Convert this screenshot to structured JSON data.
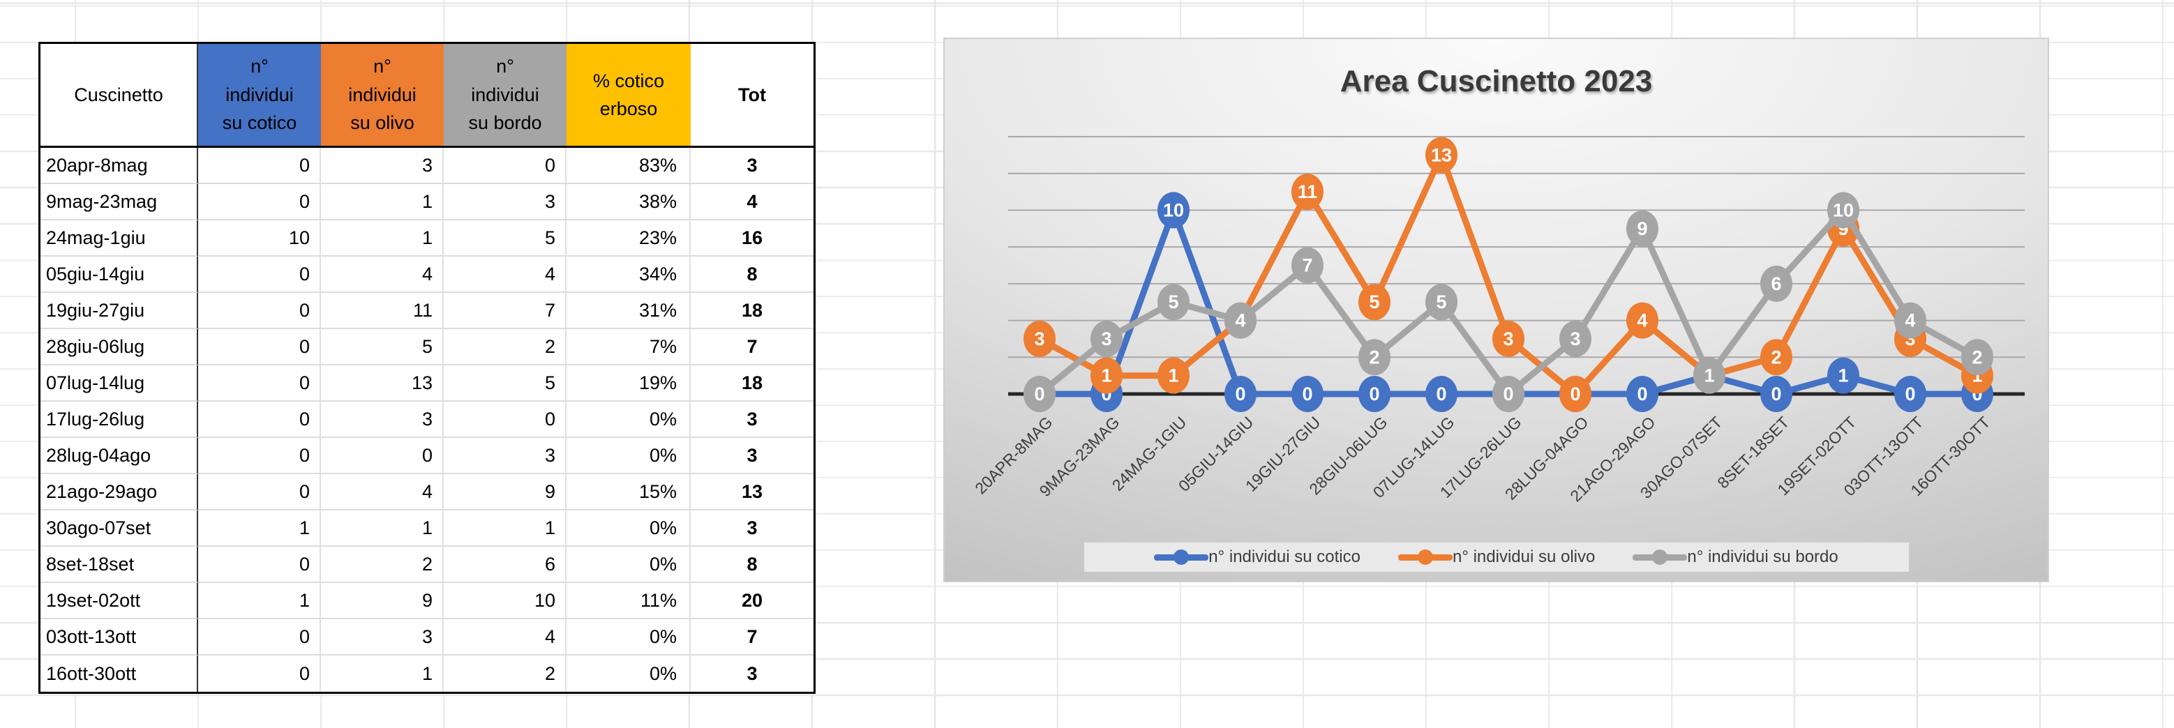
{
  "table": {
    "columns": [
      {
        "key": "period",
        "label": "Cuscinetto",
        "lines": [
          "Cuscinetto"
        ],
        "bg": "#FFFFFF",
        "bold": false
      },
      {
        "key": "cotico",
        "label": "n° individui su cotico",
        "lines": [
          "n°",
          "individui",
          "su cotico"
        ],
        "bg": "#4472C4",
        "bold": false
      },
      {
        "key": "olivo",
        "label": "n° individui su olivo",
        "lines": [
          "n°",
          "individui",
          "su olivo"
        ],
        "bg": "#ED7D31",
        "bold": false
      },
      {
        "key": "bordo",
        "label": "n° individui su bordo",
        "lines": [
          "n°",
          "individui",
          "su bordo"
        ],
        "bg": "#A5A5A5",
        "bold": false
      },
      {
        "key": "perc",
        "label": "% cotico erboso",
        "lines": [
          "% cotico",
          "erboso"
        ],
        "bg": "#FFC000",
        "bold": false
      },
      {
        "key": "tot",
        "label": "Tot",
        "lines": [
          "Tot"
        ],
        "bg": "#FFFFFF",
        "bold": true
      }
    ],
    "rows": [
      {
        "period": "20apr-8mag",
        "cotico": "0",
        "olivo": "3",
        "bordo": "0",
        "perc": "83%",
        "tot": "3"
      },
      {
        "period": "9mag-23mag",
        "cotico": "0",
        "olivo": "1",
        "bordo": "3",
        "perc": "38%",
        "tot": "4"
      },
      {
        "period": "24mag-1giu",
        "cotico": "10",
        "olivo": "1",
        "bordo": "5",
        "perc": "23%",
        "tot": "16"
      },
      {
        "period": "05giu-14giu",
        "cotico": "0",
        "olivo": "4",
        "bordo": "4",
        "perc": "34%",
        "tot": "8"
      },
      {
        "period": "19giu-27giu",
        "cotico": "0",
        "olivo": "11",
        "bordo": "7",
        "perc": "31%",
        "tot": "18"
      },
      {
        "period": "28giu-06lug",
        "cotico": "0",
        "olivo": "5",
        "bordo": "2",
        "perc": "7%",
        "tot": "7"
      },
      {
        "period": "07lug-14lug",
        "cotico": "0",
        "olivo": "13",
        "bordo": "5",
        "perc": "19%",
        "tot": "18"
      },
      {
        "period": "17lug-26lug",
        "cotico": "0",
        "olivo": "3",
        "bordo": "0",
        "perc": "0%",
        "tot": "3"
      },
      {
        "period": "28lug-04ago",
        "cotico": "0",
        "olivo": "0",
        "bordo": "3",
        "perc": "0%",
        "tot": "3"
      },
      {
        "period": "21ago-29ago",
        "cotico": "0",
        "olivo": "4",
        "bordo": "9",
        "perc": "15%",
        "tot": "13"
      },
      {
        "period": "30ago-07set",
        "cotico": "1",
        "olivo": "1",
        "bordo": "1",
        "perc": "0%",
        "tot": "3"
      },
      {
        "period": "8set-18set",
        "cotico": "0",
        "olivo": "2",
        "bordo": "6",
        "perc": "0%",
        "tot": "8"
      },
      {
        "period": "19set-02ott",
        "cotico": "1",
        "olivo": "9",
        "bordo": "10",
        "perc": "11%",
        "tot": "20"
      },
      {
        "period": "03ott-13ott",
        "cotico": "0",
        "olivo": "3",
        "bordo": "4",
        "perc": "0%",
        "tot": "7"
      },
      {
        "period": "16ott-30ott",
        "cotico": "0",
        "olivo": "1",
        "bordo": "2",
        "perc": "0%",
        "tot": "3"
      }
    ]
  },
  "chart_data": {
    "type": "line",
    "title": "Area Cuscinetto 2023",
    "categories": [
      "20APR-8MAG",
      "9MAG-23MAG",
      "24MAG-1GIU",
      "05GIU-14GIU",
      "19GIU-27GIU",
      "28GIU-06LUG",
      "07LUG-14LUG",
      "17LUG-26LUG",
      "28LUG-04AGO",
      "21AGO-29AGO",
      "30AGO-07SET",
      "8SET-18SET",
      "19SET-02OTT",
      "03OTT-13OTT",
      "16OTT-30OTT"
    ],
    "series": [
      {
        "name": "n° individui su cotico",
        "color": "#4472C4",
        "values": [
          0,
          0,
          10,
          0,
          0,
          0,
          0,
          0,
          0,
          0,
          1,
          0,
          1,
          0,
          0
        ]
      },
      {
        "name": "n° individui su olivo",
        "color": "#ED7D31",
        "values": [
          3,
          1,
          1,
          4,
          11,
          5,
          13,
          3,
          0,
          4,
          1,
          2,
          9,
          3,
          1
        ]
      },
      {
        "name": "n° individui su bordo",
        "color": "#A5A5A5",
        "values": [
          0,
          3,
          5,
          4,
          7,
          2,
          5,
          0,
          3,
          9,
          1,
          6,
          10,
          4,
          2
        ]
      }
    ],
    "xlabel": "",
    "ylabel": "",
    "ylim": [
      0,
      14
    ],
    "grid_step": 2,
    "grid_on": true,
    "legend_position": "bottom",
    "data_labels": true,
    "axis_color": "#262626",
    "gridline_color": "#a8a8a8",
    "label_text_color": "#3d3d3d",
    "data_label_color": "#ffffff"
  }
}
